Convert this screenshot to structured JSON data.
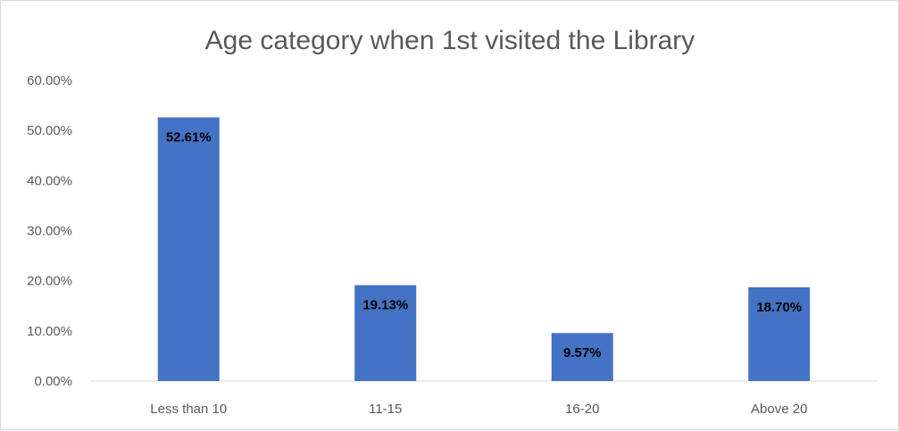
{
  "chart_data": {
    "type": "bar",
    "title": "Age category when 1st visited the Library",
    "categories": [
      "Less than 10",
      "11-15",
      "16-20",
      "Above 20"
    ],
    "values": [
      52.61,
      19.13,
      9.57,
      18.7
    ],
    "data_labels": [
      "52.61%",
      "19.13%",
      "9.57%",
      "18.70%"
    ],
    "ylim": [
      0,
      60
    ],
    "y_ticks": [
      0,
      10,
      20,
      30,
      40,
      50,
      60
    ],
    "y_tick_labels": [
      "0.00%",
      "10.00%",
      "20.00%",
      "30.00%",
      "40.00%",
      "50.00%",
      "60.00%"
    ],
    "xlabel": "",
    "ylabel": "",
    "grid": false,
    "legend": "none",
    "bar_color": "#4472c4",
    "axis_color": "#d9d9d9",
    "text_color": "#595959"
  }
}
